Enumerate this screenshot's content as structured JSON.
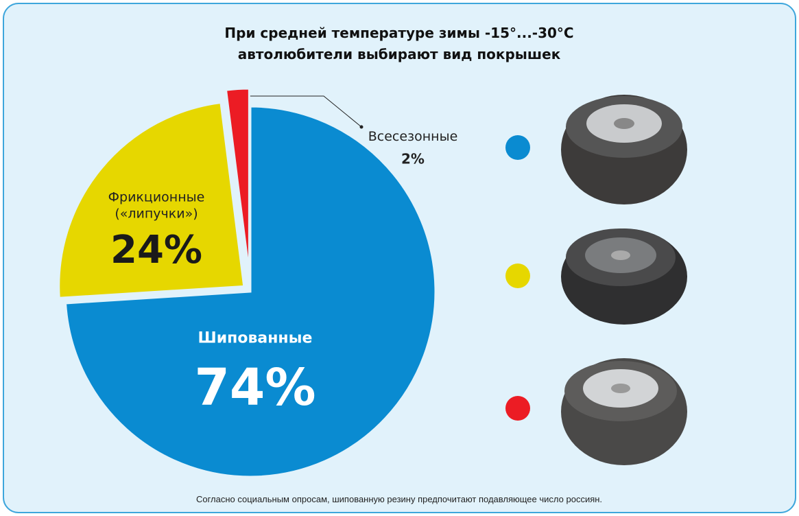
{
  "chart_data": {
    "type": "pie",
    "title": [
      "При средней температуре зимы -15°...-30°C",
      "автолюбители выбирают вид покрышек"
    ],
    "categories": [
      "Шипованные",
      "Фрикционные («липучки»)",
      "Всесезонные"
    ],
    "values": [
      74,
      24,
      2
    ],
    "value_labels": [
      "74%",
      "24%",
      "2%"
    ],
    "colors": [
      "#0a8bd1",
      "#e6d700",
      "#ec1c24"
    ],
    "caption": "Согласно социальным опросам, шипованную резину предпочитают подавляющее число россиян."
  }
}
